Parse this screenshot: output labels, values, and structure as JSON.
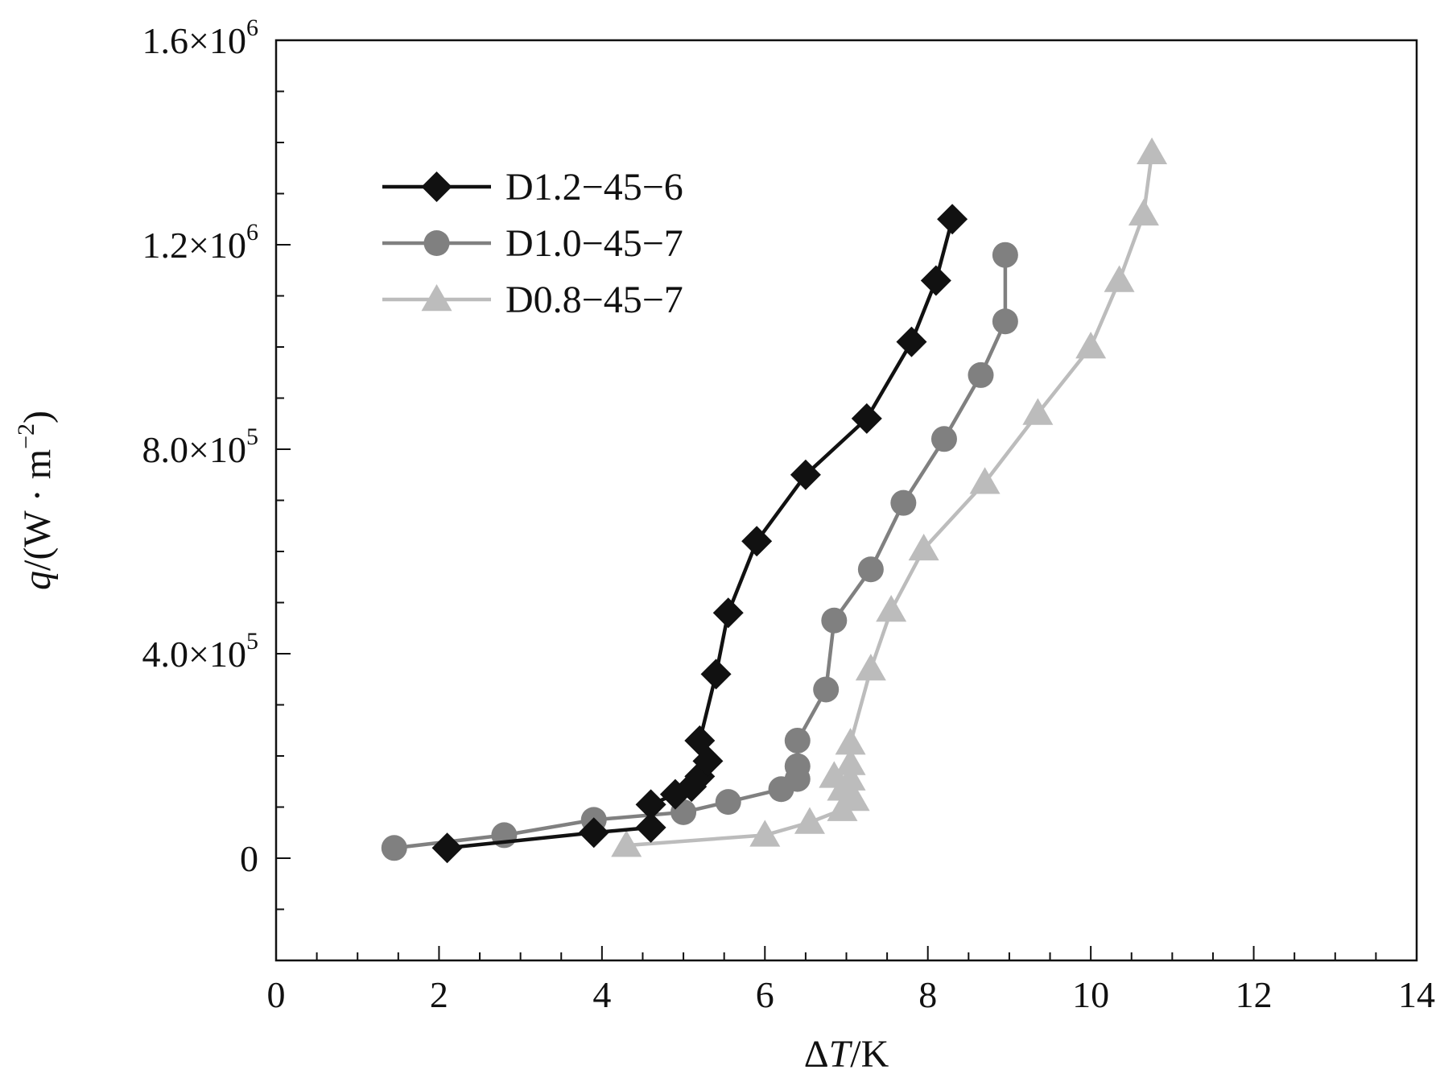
{
  "chart_data": {
    "type": "line",
    "xlabel": {
      "pre": "Δ",
      "var": "T",
      "post": "/K"
    },
    "ylabel": {
      "var": "q",
      "pre": "/(W · m",
      "sup": "−2",
      "post": ")"
    },
    "xlim": [
      0,
      14
    ],
    "ylim": [
      -200000,
      1600000
    ],
    "x_ticks": [
      {
        "value": 0,
        "label": "0"
      },
      {
        "value": 2,
        "label": "2"
      },
      {
        "value": 4,
        "label": "4"
      },
      {
        "value": 6,
        "label": "6"
      },
      {
        "value": 8,
        "label": "8"
      },
      {
        "value": 10,
        "label": "10"
      },
      {
        "value": 12,
        "label": "12"
      },
      {
        "value": 14,
        "label": "14"
      }
    ],
    "y_ticks": [
      {
        "value": 0,
        "mant": "0",
        "exp": ""
      },
      {
        "value": 400000,
        "mant": "4.0×10",
        "exp": "5"
      },
      {
        "value": 800000,
        "mant": "8.0×10",
        "exp": "5"
      },
      {
        "value": 1200000,
        "mant": "1.2×10",
        "exp": "6"
      },
      {
        "value": 1600000,
        "mant": "1.6×10",
        "exp": "6"
      }
    ],
    "grid": false,
    "legend_position": "top-left",
    "series": [
      {
        "name": "D1.2−45−6",
        "marker": "diamond",
        "color": "#111111",
        "x": [
          2.1,
          3.9,
          4.6,
          4.6,
          4.9,
          5.1,
          5.2,
          5.3,
          5.2,
          5.4,
          5.55,
          5.9,
          6.5,
          7.25,
          7.8,
          8.1,
          8.3
        ],
        "y": [
          20000,
          50000,
          60000,
          105000,
          125000,
          140000,
          160000,
          190000,
          230000,
          360000,
          480000,
          620000,
          750000,
          860000,
          1010000,
          1130000,
          1250000
        ]
      },
      {
        "name": "D1.0−45−7",
        "marker": "circle",
        "color": "#808080",
        "x": [
          1.45,
          2.8,
          3.9,
          5.0,
          5.55,
          6.2,
          6.4,
          6.4,
          6.4,
          6.75,
          6.85,
          7.3,
          7.7,
          8.2,
          8.65,
          8.95,
          8.95
        ],
        "y": [
          20000,
          45000,
          75000,
          90000,
          110000,
          135000,
          155000,
          180000,
          230000,
          330000,
          465000,
          565000,
          695000,
          820000,
          945000,
          1050000,
          1180000
        ]
      },
      {
        "name": "D0.8−45−7",
        "marker": "triangle",
        "color": "#bcbcbc",
        "x": [
          4.3,
          6.0,
          6.55,
          6.95,
          7.1,
          6.95,
          7.05,
          6.85,
          7.05,
          7.05,
          7.3,
          7.55,
          7.95,
          8.7,
          9.35,
          10.0,
          10.35,
          10.65,
          10.75
        ],
        "y": [
          25000,
          45000,
          70000,
          95000,
          115000,
          135000,
          155000,
          160000,
          185000,
          225000,
          370000,
          485000,
          605000,
          735000,
          870000,
          1000000,
          1130000,
          1260000,
          1380000
        ]
      }
    ]
  }
}
